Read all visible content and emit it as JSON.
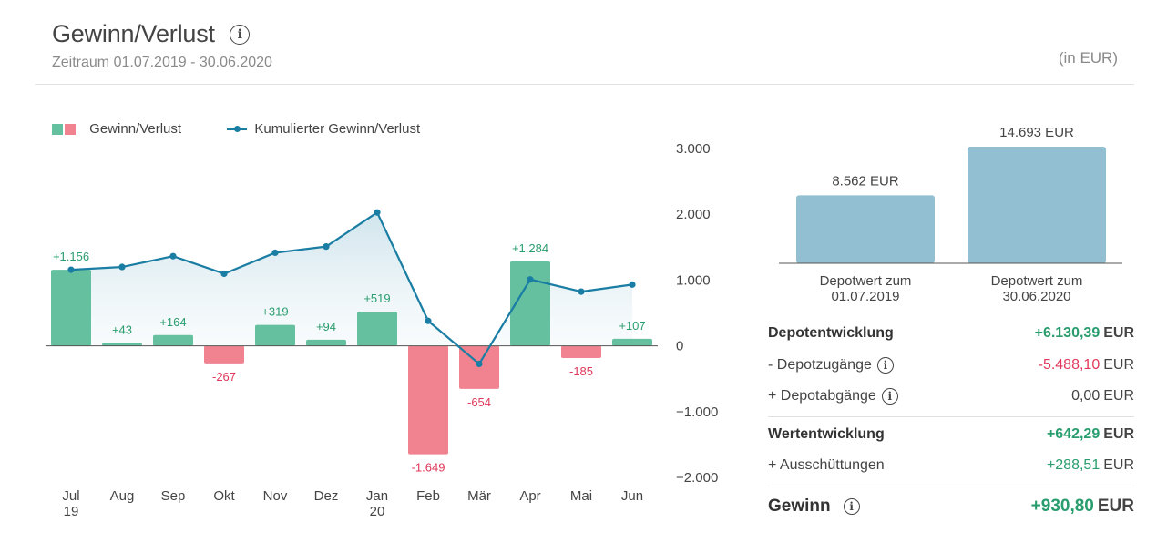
{
  "header": {
    "title": "Gewinn/Verlust",
    "period_label": "Zeitraum 01.07.2019 - 30.06.2020",
    "unit": "(in EUR)",
    "info_icon": "info-icon"
  },
  "legend": {
    "bars_label": "Gewinn/Verlust",
    "line_label": "Kumulierter Gewinn/Verlust"
  },
  "colors": {
    "positive": "#64c09e",
    "negative": "#f0838f",
    "line": "#1a7da3",
    "depot_bar": "#92bfd1",
    "text_positive": "#2a9d6e",
    "text_negative": "#e0385a"
  },
  "chart_data": [
    {
      "type": "bar",
      "categories": [
        "Jul\n19",
        "Aug",
        "Sep",
        "Okt",
        "Nov",
        "Dez",
        "Jan\n20",
        "Feb",
        "Mär",
        "Apr",
        "Mai",
        "Jun"
      ],
      "series": [
        {
          "name": "Gewinn/Verlust",
          "type": "bar",
          "values": [
            1156,
            43,
            164,
            -267,
            319,
            94,
            519,
            -1649,
            -654,
            1284,
            -185,
            107
          ],
          "labels": [
            "+1.156",
            "+43",
            "+164",
            "-267",
            "+319",
            "+94",
            "+519",
            "-1.649",
            "-654",
            "+1.284",
            "-185",
            "+107"
          ]
        },
        {
          "name": "Kumulierter Gewinn/Verlust",
          "type": "line",
          "values": [
            1156,
            1199,
            1363,
            1096,
            1415,
            1509,
            2028,
            379,
            -275,
            1009,
            824,
            931
          ]
        }
      ],
      "ylim": [
        -2000,
        3000
      ],
      "yticks": [
        3000,
        2000,
        1000,
        0,
        -1000,
        -2000
      ],
      "ytick_labels": [
        "3.000",
        "2.000",
        "1.000",
        "0",
        "−1.000",
        "−2.000"
      ],
      "grid": false,
      "legend": "top-left"
    },
    {
      "type": "bar",
      "categories": [
        "Depotwert zum\n01.07.2019",
        "Depotwert zum\n30.06.2020"
      ],
      "values": [
        8562,
        14693
      ],
      "labels": [
        "8.562 EUR",
        "14.693 EUR"
      ]
    }
  ],
  "summary": {
    "rows": [
      {
        "label": "Depotentwicklung",
        "value": "+6.130,39",
        "currency": "EUR",
        "bold": true,
        "tone": "pos",
        "info": false
      },
      {
        "label": "- Depotzugänge",
        "value": "-5.488,10",
        "currency": "EUR",
        "bold": false,
        "tone": "neg",
        "info": true
      },
      {
        "label": "+ Depotabgänge",
        "value": "0,00",
        "currency": "EUR",
        "bold": false,
        "tone": "neutral",
        "info": true
      },
      {
        "label": "Wertentwicklung",
        "value": "+642,29",
        "currency": "EUR",
        "bold": true,
        "tone": "pos",
        "info": false
      },
      {
        "label": "+ Ausschüttungen",
        "value": "+288,51",
        "currency": "EUR",
        "bold": false,
        "tone": "pos",
        "info": false
      },
      {
        "label": "Gewinn",
        "value": "+930,80",
        "currency": "EUR",
        "bold": true,
        "tone": "pos",
        "info": true
      }
    ]
  }
}
